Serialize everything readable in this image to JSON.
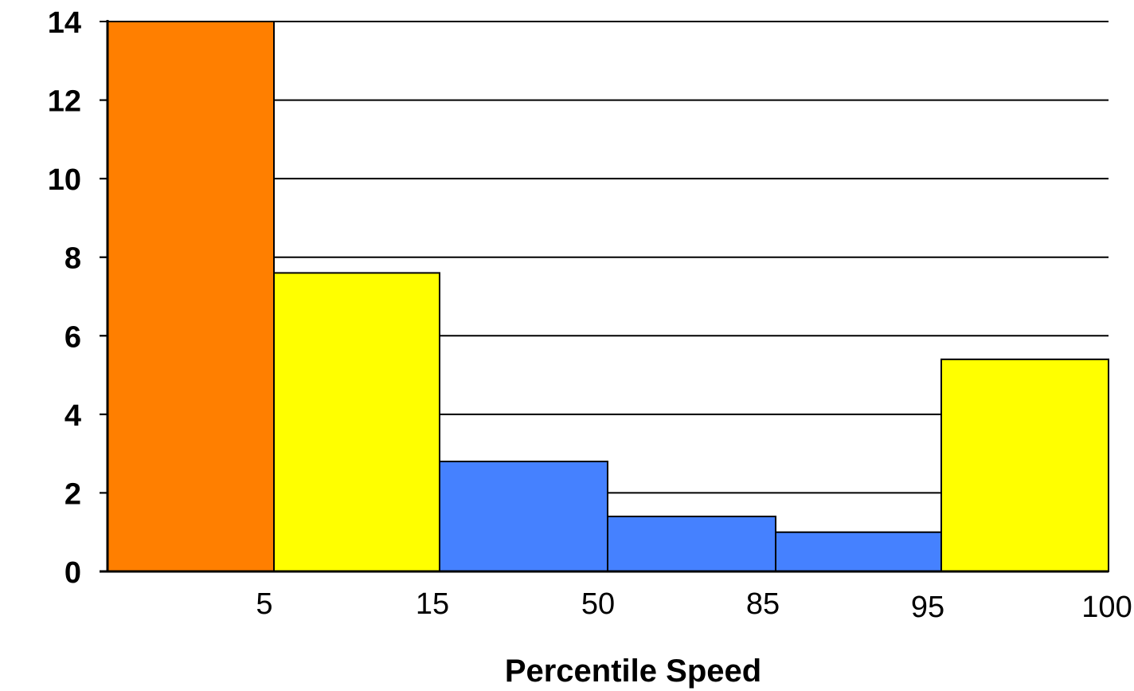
{
  "chart_data": {
    "type": "bar",
    "title": "",
    "xlabel": "Percentile Speed",
    "ylabel": "",
    "ylim": [
      0,
      14
    ],
    "grid": true,
    "y_ticks": [
      "0",
      "2",
      "4",
      "6",
      "8",
      "10",
      "12",
      "14"
    ],
    "x_ticks": [
      "5",
      "15",
      "50",
      "85",
      "95",
      "100"
    ],
    "bins": [
      {
        "from": "0",
        "to": "5",
        "value": 14.0,
        "color": "#ff7f00"
      },
      {
        "from": "5",
        "to": "15",
        "value": 7.6,
        "color": "#ffff00"
      },
      {
        "from": "15",
        "to": "50",
        "value": 2.8,
        "color": "#4581ff"
      },
      {
        "from": "50",
        "to": "85",
        "value": 1.4,
        "color": "#4581ff"
      },
      {
        "from": "85",
        "to": "95",
        "value": 1.0,
        "color": "#4581ff"
      },
      {
        "from": "95",
        "to": "100",
        "value": 5.4,
        "color": "#ffff00"
      }
    ]
  }
}
